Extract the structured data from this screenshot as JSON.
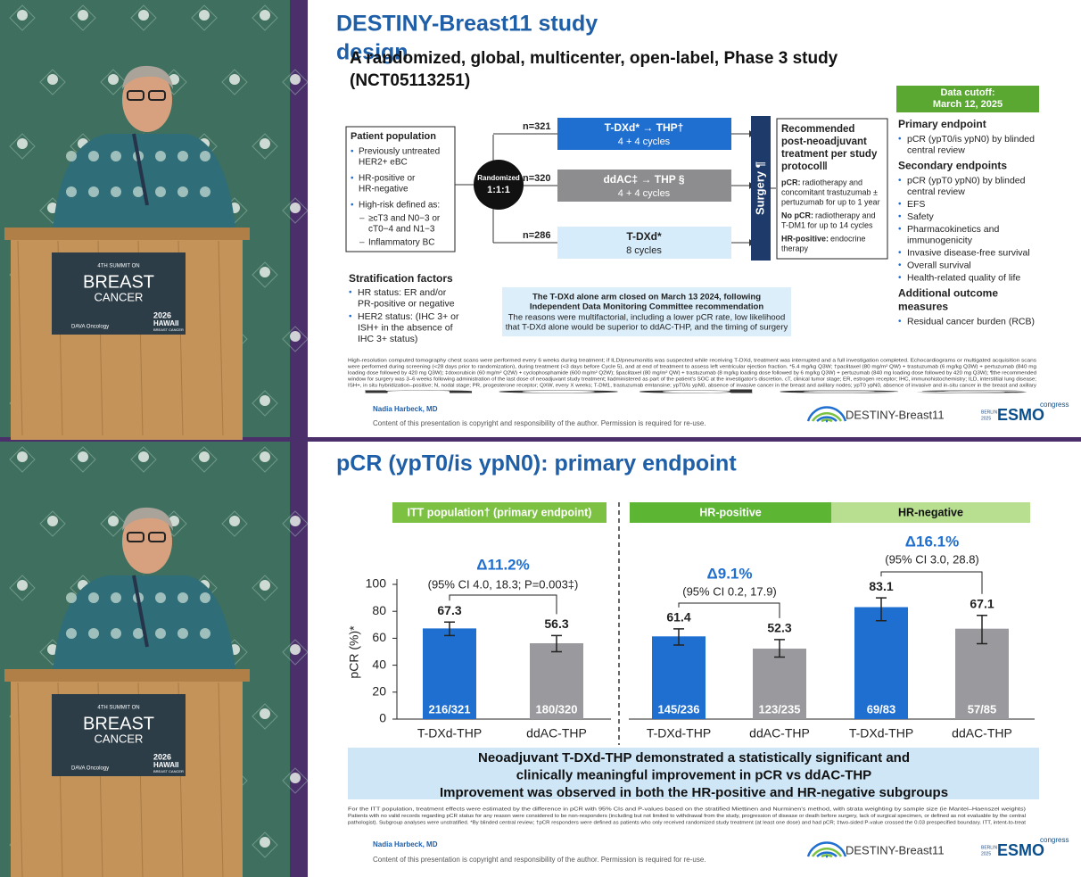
{
  "video_frames": [
    {
      "podium": [
        "4TH SUMMIT ON",
        "BREAST",
        "CANCER"
      ],
      "sponsor": "DAVA Oncology",
      "event": [
        "2026",
        "HAWAII",
        "BREAST CANCER"
      ]
    },
    {
      "podium": [
        "4TH SUMMIT ON",
        "BREAST",
        "CANCER"
      ],
      "sponsor": "DAVA Oncology",
      "event": [
        "2026",
        "HAWAII",
        "BREAST CANCER"
      ]
    }
  ],
  "slide_design": {
    "title": [
      "DESTINY-Breast11 study",
      "design"
    ],
    "subtitle": [
      "A randomized, global, multicenter, open-label, Phase 3 study",
      "(NCT05113251)"
    ],
    "population": {
      "header": "Patient population",
      "items": [
        [
          "Previously untreated",
          "HER2+ eBC"
        ],
        [
          "HR-positive or",
          "HR-negative"
        ],
        [
          "High-risk defined as:"
        ]
      ],
      "subitems": [
        [
          "≥cT3 and N0−3 or",
          "cT0−4 and N1−3"
        ],
        [
          "Inflammatory BC"
        ]
      ]
    },
    "randomization": [
      "Randomized",
      "1:1:1"
    ],
    "arms": [
      {
        "n": "n=321",
        "name": "T-DXd* → THP†",
        "cycles": "4 + 4 cycles"
      },
      {
        "n": "n=320",
        "name": "ddAC‡ → THP §",
        "cycles": "4 + 4 cycles"
      },
      {
        "n": "n=286",
        "name": "T-DXd*",
        "cycles": "8 cycles"
      }
    ],
    "surgery": "Surgery ¶",
    "recommended": {
      "header": [
        "Recommended",
        "post-neoadjuvant",
        "treatment per study",
        "protocol‖"
      ],
      "entries": [
        {
          "label": "pCR:",
          "text": [
            "radiotherapy and",
            "concomitant trastuzumab ±",
            "pertuzumab for up to 1 year"
          ]
        },
        {
          "label": "No pCR:",
          "text": [
            "radiotherapy and",
            "T-DM1 for up to 14 cycles"
          ]
        },
        {
          "label": "HR-positive:",
          "text": [
            "endocrine",
            "therapy"
          ]
        }
      ]
    },
    "stratification": {
      "header": "Stratification factors",
      "items": [
        [
          "HR status: ER and/or",
          "PR-positive or negative"
        ],
        [
          "HER2 status: (IHC 3+ or",
          "ISH+ in the absence of",
          "IHC 3+ status)"
        ]
      ]
    },
    "note": {
      "bold": [
        "The T-DXd alone arm closed on March 13 2024, following",
        "Independent Data Monitoring Committee recommendation"
      ],
      "text": [
        "The reasons were multifactorial, including a lower pCR rate, low likelihood",
        "that T-DXd alone would be superior to ddAC-THP, and the timing of surgery"
      ]
    },
    "cutoff": [
      "Data cutoff:",
      "March 12, 2025"
    ],
    "endpoints": [
      {
        "header": [
          "Primary endpoint"
        ],
        "items": [
          [
            "pCR (ypT0/is ypN0) by blinded",
            "central review"
          ]
        ]
      },
      {
        "header": [
          "Secondary endpoints"
        ],
        "items": [
          [
            "pCR (ypT0 ypN0) by blinded",
            "central review"
          ],
          [
            "EFS"
          ],
          [
            "Safety"
          ],
          [
            "Pharmacokinetics and",
            "immunogenicity"
          ],
          [
            "Invasive disease-free survival"
          ],
          [
            "Overall survival"
          ],
          [
            "Health-related quality of life"
          ]
        ]
      },
      {
        "header": [
          "Additional outcome",
          "measures"
        ],
        "items": [
          [
            "Residual cancer burden (RCB)"
          ]
        ]
      }
    ],
    "footnote": [
      "High-resolution computed tomography chest scans were performed every 6 weeks during treatment; if ILD/pneumonitis was suspected while receiving T-DXd, treatment was interrupted and a full investigation completed. Echocardiograms or multigated acquisition scans",
      "were performed during screening (<28 days prior to randomization), during treatment (<3 days before Cycle 5), and at end of treatment to assess left ventricular ejection fraction. *5.4 mg/kg Q3W; †paclitaxel (80 mg/m² QW) + trastuzumab (6 mg/kg Q3W) + pertuzumab (840 mg",
      "loading dose followed by 420 mg Q3W); ‡doxorubicin (60 mg/m² Q2W) + cyclophosphamide (600 mg/m² Q2W); §paclitaxel (80 mg/m² QW) + trastuzumab (8 mg/kg loading dose followed by 6 mg/kg Q3W) + pertuzumab (840 mg loading dose followed by 420 mg Q3W); ¶the recommended",
      "window for surgery was 3–6 weeks following administration of the last dose of neoadjuvant study treatment; ‖administered as part of the patient's SOC at the investigator's discretion. cT, clinical tumor stage; ER, estrogen receptor; IHC, immunohistochemistry; ILD, interstitial lung disease;",
      "ISH+, in situ hybridization–positive; N, nodal stage; PR, progesterone receptor; QXW, every X weeks; T-DM1, trastuzumab emtansine; ypT0/is ypN0, absence of invasive cancer in the breast and axillary nodes; ypT0 ypN0, absence of invasive and in-situ cancer in the breast and axillary",
      "nodes"
    ],
    "presenter": "Nadia Harbeck, MD",
    "copyright": "Content of this presentation is copyright and responsibility of the author. Permission is required for re-use.",
    "logos": {
      "study": "DESTINY-Breast11",
      "congress": "ESMO",
      "congress_sub": "congress",
      "city": [
        "BERLIN",
        "2025"
      ]
    }
  },
  "slide_results": {
    "title": "pCR (ypT0/is ypN0): primary endpoint",
    "conclusion": [
      "Neoadjuvant T-DXd-THP demonstrated a statistically significant and",
      "clinically meaningful improvement in pCR vs ddAC-THP",
      "Improvement was observed in both the HR-positive and HR-negative subgroups"
    ],
    "footnote": [
      "For the ITT population, treatment effects were estimated by the difference in pCR with 95% CIs and P-values based on the stratified Miettinen and Nurminen's method, with strata weighting by sample size (ie Mantel–Haenszel weights)",
      "Patients with no valid records regarding pCR status for any reason were considered to be non-responders (including but not limited to withdrawal from the study, progression of disease or death before surgery, lack of surgical specimen, or defined as not evaluable by the central",
      "pathologist). Subgroup analyses were unstratified. *By blinded central review; †pCR responders were defined as patients who only received randomized study treatment (at least one dose) and had pCR; ‡two-sided P-value crossed the 0.03 prespecified boundary. ITT, intent-to-treat"
    ],
    "presenter": "Nadia Harbeck, MD",
    "copyright": "Content of this presentation is copyright and responsibility of the author. Permission is required for re-use.",
    "logos": {
      "study": "DESTINY-Breast11",
      "congress": "ESMO",
      "congress_sub": "congress",
      "city": [
        "BERLIN",
        "2025"
      ]
    }
  },
  "chart_data": {
    "type": "bar",
    "y_label": "pCR (%)*",
    "groups": [
      {
        "name": "ITT population† (primary endpoint)",
        "color": "#7cc142"
      },
      {
        "name": "HR-positive",
        "color": "#5db534"
      },
      {
        "name": "HR-negative",
        "color": "#b8de90"
      }
    ],
    "categories": [
      "T-DXd-THP",
      "ddAC-THP",
      "T-DXd-THP",
      "ddAC-THP",
      "T-DXd-THP",
      "ddAC-THP"
    ],
    "values": [
      67.3,
      56.3,
      61.4,
      52.3,
      83.1,
      67.1
    ],
    "error_low": [
      62,
      50,
      55,
      46,
      73,
      56
    ],
    "error_high": [
      72,
      62,
      67,
      59,
      90,
      77
    ],
    "bar_labels": [
      "216/321",
      "180/320",
      "145/236",
      "123/235",
      "69/83",
      "57/85"
    ],
    "colors": [
      "#1f6fd1",
      "#9a9a9e",
      "#1f6fd1",
      "#9a9a9e",
      "#1f6fd1",
      "#9a9a9e"
    ],
    "annotations": [
      {
        "delta": "Δ11.2%",
        "ci": "(95% CI 4.0, 18.3; P=0.003‡)"
      },
      {
        "delta": "Δ9.1%",
        "ci": "(95% CI 0.2, 17.9)"
      },
      {
        "delta": "Δ16.1%",
        "ci": "(95% CI 3.0, 28.8)"
      }
    ],
    "ylim": [
      0,
      100
    ],
    "yticks": [
      0,
      20,
      40,
      60,
      80,
      100
    ]
  }
}
